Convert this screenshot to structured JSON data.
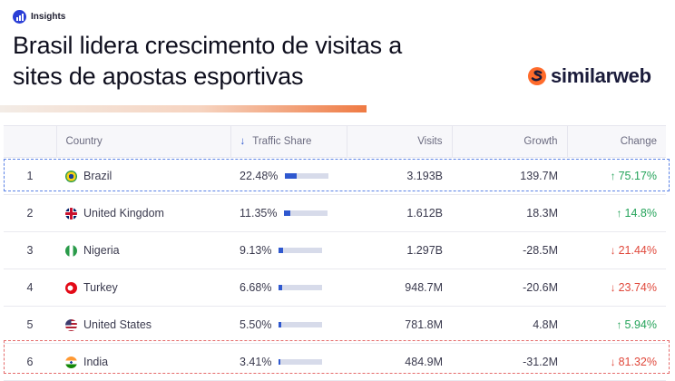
{
  "badge": {
    "label": "Insights",
    "icon": "bar-chart-icon"
  },
  "headline": {
    "line1": "Brasil lidera crescimento de visitas a",
    "line2": "sites de apostas esportivas"
  },
  "logo": {
    "text": "similarweb",
    "icon": "similarweb-logo-icon",
    "brand_color": "#ff6b2b"
  },
  "table": {
    "headers": {
      "rank": "",
      "country": "Country",
      "traffic_share": "Traffic Share",
      "visits": "Visits",
      "growth": "Growth",
      "change": "Change"
    },
    "sort_icon": "arrow-down-icon",
    "rows": [
      {
        "rank": "1",
        "country": "Brazil",
        "flag": "brazil-flag-icon",
        "share": "22.48%",
        "share_fraction": 0.2248,
        "visits": "3.193B",
        "growth": "139.7M",
        "change": "75.17%",
        "direction": "up"
      },
      {
        "rank": "2",
        "country": "United Kingdom",
        "flag": "uk-flag-icon",
        "share": "11.35%",
        "share_fraction": 0.1135,
        "visits": "1.612B",
        "growth": "18.3M",
        "change": "14.8%",
        "direction": "up"
      },
      {
        "rank": "3",
        "country": "Nigeria",
        "flag": "nigeria-flag-icon",
        "share": "9.13%",
        "share_fraction": 0.0913,
        "visits": "1.297B",
        "growth": "-28.5M",
        "change": "21.44%",
        "direction": "down"
      },
      {
        "rank": "4",
        "country": "Turkey",
        "flag": "turkey-flag-icon",
        "share": "6.68%",
        "share_fraction": 0.0668,
        "visits": "948.7M",
        "growth": "-20.6M",
        "change": "23.74%",
        "direction": "down"
      },
      {
        "rank": "5",
        "country": "United States",
        "flag": "us-flag-icon",
        "share": "5.50%",
        "share_fraction": 0.055,
        "visits": "781.8M",
        "growth": "4.8M",
        "change": "5.94%",
        "direction": "up"
      },
      {
        "rank": "6",
        "country": "India",
        "flag": "india-flag-icon",
        "share": "3.41%",
        "share_fraction": 0.0341,
        "visits": "484.9M",
        "growth": "-31.2M",
        "change": "81.32%",
        "direction": "down"
      }
    ]
  },
  "colors": {
    "accent_blue": "#2f58cf",
    "up_green": "#25a35a",
    "down_red": "#e0493c",
    "highlight_blue": "#5a82e6",
    "highlight_red": "#e56b6b"
  }
}
